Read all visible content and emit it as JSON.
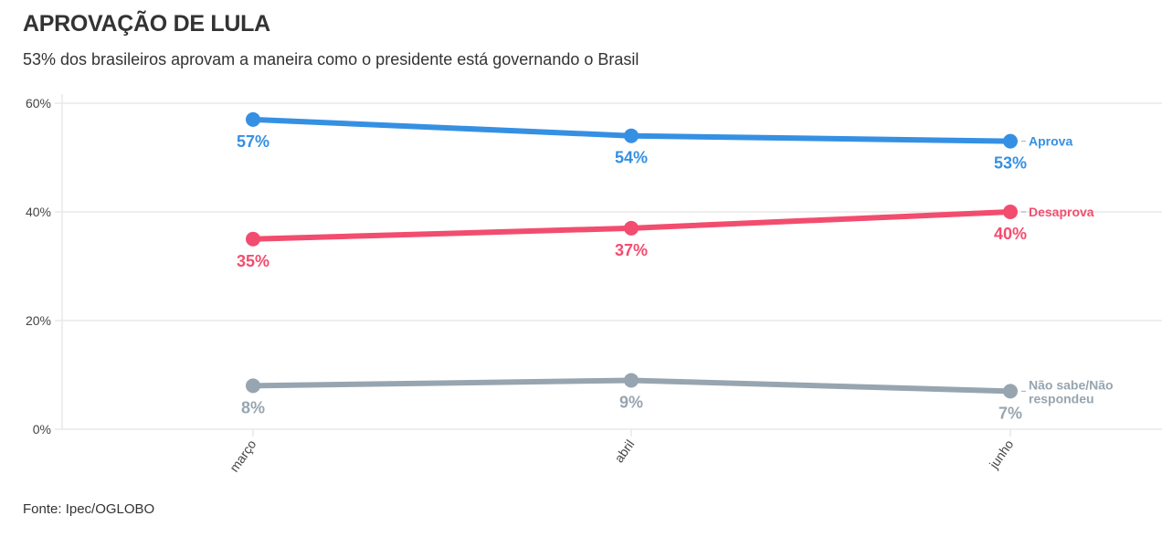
{
  "header": {
    "title": "APROVAÇÃO DE LULA",
    "subtitle": "53% dos brasileiros aprovam a maneira como o presidente está governando o Brasil"
  },
  "footer": {
    "source": "Fonte: Ipec/OGLOBO"
  },
  "chart_data": {
    "type": "line",
    "title": "APROVAÇÃO DE LULA",
    "subtitle": "53% dos brasileiros aprovam a maneira como o presidente está governando o Brasil",
    "xlabel": "",
    "ylabel": "",
    "categories": [
      "março",
      "abril",
      "junho"
    ],
    "ylim": [
      0,
      60
    ],
    "yticks": [
      0,
      20,
      40,
      60
    ],
    "ytick_labels": [
      "0%",
      "20%",
      "40%",
      "60%"
    ],
    "grid": true,
    "legend": "inline-right",
    "series": [
      {
        "name": "Aprova",
        "color": "#3590e3",
        "values": [
          57,
          54,
          53
        ],
        "labels": [
          "57%",
          "54%",
          "53%"
        ]
      },
      {
        "name": "Desaprova",
        "color": "#f24d6e",
        "values": [
          35,
          37,
          40
        ],
        "labels": [
          "35%",
          "37%",
          "40%"
        ]
      },
      {
        "name": "Não sabe/Não respondeu",
        "label_lines": [
          "Não sabe/Não",
          "respondeu"
        ],
        "color": "#97a5b0",
        "values": [
          8,
          9,
          7
        ],
        "labels": [
          "8%",
          "9%",
          "7%"
        ]
      }
    ]
  }
}
